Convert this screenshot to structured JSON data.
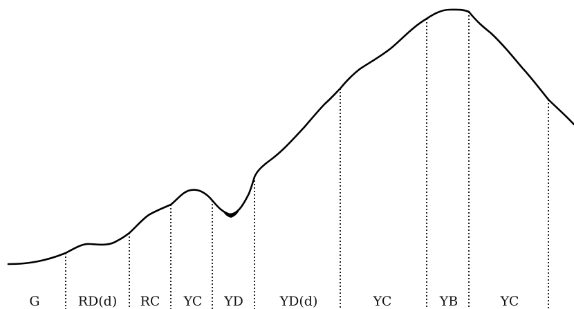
{
  "diagram": {
    "zones": [
      "G",
      "RD(d)",
      "RC",
      "YC",
      "YD",
      "YD(d)",
      "YC",
      "YB",
      "YC"
    ]
  },
  "colors": {
    "line": "#000000",
    "divider": "#222222",
    "text": "#111111",
    "background": "#ffffff"
  }
}
